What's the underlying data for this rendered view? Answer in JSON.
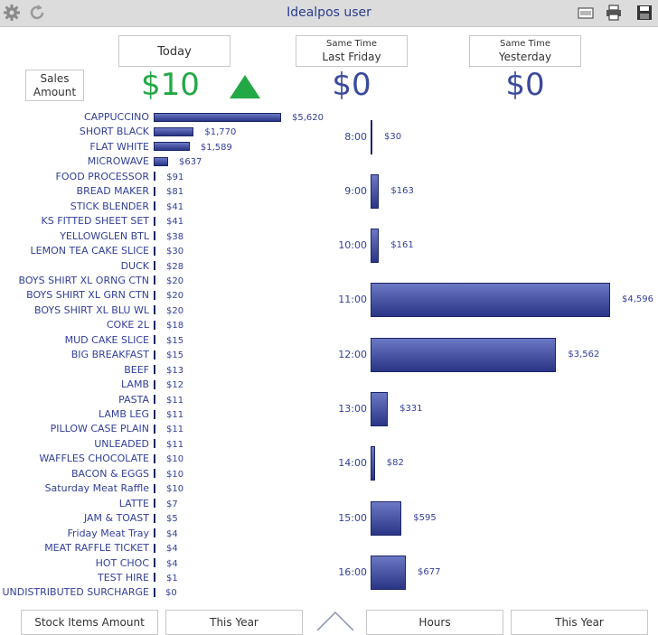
{
  "window": {
    "title": "Idealpos user"
  },
  "toolbar": {
    "left_icons": [
      "gear-icon",
      "refresh-icon"
    ],
    "right_icons": [
      "email-icon",
      "printer-icon",
      "save-icon"
    ]
  },
  "summary": {
    "sales_amount_label_line1": "Sales",
    "sales_amount_label_line2": "Amount",
    "today_label": "Today",
    "today_value": "$10",
    "last_friday_label_line1": "Same Time",
    "last_friday_label_line2": "Last Friday",
    "last_friday_value": "$0",
    "yesterday_label_line1": "Same Time",
    "yesterday_label_line2": "Yesterday",
    "yesterday_value": "$0",
    "trend_color": "#22a845",
    "value_color": "#3a4a9c"
  },
  "chart_data": [
    {
      "type": "bar",
      "orientation": "horizontal",
      "categories": [
        "CAPPUCCINO",
        "SHORT BLACK",
        "FLAT WHITE",
        "MICROWAVE",
        "FOOD PROCESSOR",
        "BREAD MAKER",
        "STICK BLENDER",
        "KS FITTED SHEET SET",
        "YELLOWGLEN BTL",
        "LEMON TEA CAKE SLICE",
        "DUCK",
        "BOYS SHIRT XL ORNG CTN",
        "BOYS SHIRT XL GRN CTN",
        "BOYS SHIRT XL BLU WL",
        "COKE 2L",
        "MUD CAKE SLICE",
        "BIG BREAKFAST",
        "BEEF",
        "LAMB",
        "PASTA",
        "LAMB LEG",
        "PILLOW CASE PLAIN",
        "UNLEADED",
        "WAFFLES CHOCOLATE",
        "BACON & EGGS",
        "Saturday Meat Raffle",
        "LATTE",
        "JAM & TOAST",
        "Friday Meat Tray",
        "MEAT RAFFLE TICKET",
        "HOT CHOC",
        "TEST HIRE",
        "UNDISTRIBUTED SURCHARGE"
      ],
      "values": [
        5620,
        1770,
        1589,
        637,
        91,
        81,
        41,
        41,
        38,
        30,
        28,
        20,
        20,
        20,
        18,
        15,
        15,
        13,
        12,
        11,
        11,
        11,
        11,
        10,
        10,
        10,
        7,
        5,
        4,
        4,
        4,
        1,
        0
      ],
      "labels": [
        "$5,620",
        "$1,770",
        "$1,589",
        "$637",
        "$91",
        "$81",
        "$41",
        "$41",
        "$38",
        "$30",
        "$28",
        "$20",
        "$20",
        "$20",
        "$18",
        "$15",
        "$15",
        "$13",
        "$12",
        "$11",
        "$11",
        "$11",
        "$11",
        "$10",
        "$10",
        "$10",
        "$7",
        "$5",
        "$4",
        "$4",
        "$4",
        "$1",
        "$0"
      ]
    },
    {
      "type": "bar",
      "orientation": "horizontal",
      "categories": [
        "8:00",
        "9:00",
        "10:00",
        "11:00",
        "12:00",
        "13:00",
        "14:00",
        "15:00",
        "16:00"
      ],
      "values": [
        30,
        163,
        161,
        4596,
        3562,
        331,
        82,
        595,
        677
      ],
      "labels": [
        "$30",
        "$163",
        "$161",
        "$4,596",
        "$3,562",
        "$331",
        "$82",
        "$595",
        "$677"
      ]
    }
  ],
  "bottom_tabs": {
    "stock_items": "Stock Items Amount",
    "this_year_left": "This Year",
    "hours": "Hours",
    "this_year_right": "This Year"
  }
}
